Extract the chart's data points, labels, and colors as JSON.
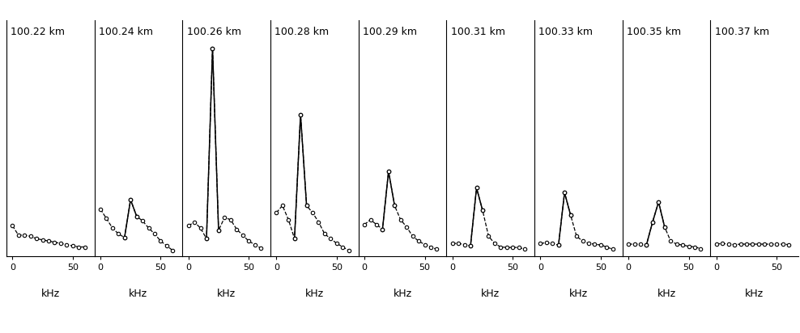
{
  "panels": [
    {
      "label": "100.22 km",
      "xvals": [
        0,
        5,
        10,
        15,
        20,
        25,
        30,
        35,
        40,
        45,
        50,
        55,
        60
      ],
      "yvals": [
        0.13,
        0.09,
        0.09,
        0.085,
        0.075,
        0.07,
        0.065,
        0.06,
        0.055,
        0.05,
        0.045,
        0.04,
        0.04
      ],
      "solid_pairs": []
    },
    {
      "label": "100.24 km",
      "xvals": [
        0,
        5,
        10,
        15,
        20,
        25,
        30,
        35,
        40,
        45,
        50,
        55,
        60
      ],
      "yvals": [
        0.2,
        0.17,
        0.13,
        0.1,
        0.085,
        0.25,
        0.18,
        0.15,
        0.12,
        0.1,
        0.07,
        0.05,
        0.03
      ],
      "solid_pairs": [
        [
          4,
          6
        ]
      ]
    },
    {
      "label": "100.26 km",
      "xvals": [
        0,
        5,
        10,
        15,
        20,
        25,
        30,
        35,
        40,
        45,
        50,
        55,
        60
      ],
      "yvals": [
        0.13,
        0.14,
        0.12,
        0.08,
        0.9,
        0.12,
        0.17,
        0.16,
        0.12,
        0.09,
        0.07,
        0.05,
        0.04
      ],
      "solid_pairs": [
        [
          3,
          5
        ]
      ]
    },
    {
      "label": "100.28 km",
      "xvals": [
        0,
        5,
        10,
        15,
        20,
        25,
        30,
        35,
        40,
        45,
        50,
        55,
        60
      ],
      "yvals": [
        0.19,
        0.22,
        0.16,
        0.08,
        0.62,
        0.22,
        0.19,
        0.15,
        0.1,
        0.08,
        0.06,
        0.04,
        0.03
      ],
      "solid_pairs": [
        [
          3,
          5
        ]
      ]
    },
    {
      "label": "100.29 km",
      "xvals": [
        0,
        5,
        10,
        15,
        20,
        25,
        30,
        35,
        40,
        45,
        50,
        55,
        60
      ],
      "yvals": [
        0.14,
        0.16,
        0.14,
        0.12,
        0.38,
        0.22,
        0.16,
        0.13,
        0.09,
        0.07,
        0.05,
        0.04,
        0.03
      ],
      "solid_pairs": [
        [
          3,
          5
        ]
      ]
    },
    {
      "label": "100.31 km",
      "xvals": [
        0,
        5,
        10,
        15,
        20,
        25,
        30,
        35,
        40,
        45,
        50,
        55,
        60
      ],
      "yvals": [
        0.06,
        0.06,
        0.05,
        0.05,
        0.3,
        0.2,
        0.09,
        0.06,
        0.04,
        0.04,
        0.04,
        0.04,
        0.03
      ],
      "solid_pairs": [
        [
          3,
          5
        ]
      ]
    },
    {
      "label": "100.33 km",
      "xvals": [
        0,
        5,
        10,
        15,
        20,
        25,
        30,
        35,
        40,
        45,
        50,
        55,
        60
      ],
      "yvals": [
        0.06,
        0.06,
        0.06,
        0.05,
        0.28,
        0.18,
        0.09,
        0.07,
        0.06,
        0.055,
        0.05,
        0.04,
        0.03
      ],
      "solid_pairs": [
        [
          3,
          5
        ]
      ]
    },
    {
      "label": "100.35 km",
      "xvals": [
        0,
        5,
        10,
        15,
        20,
        25,
        30,
        35,
        40,
        45,
        50,
        55,
        60
      ],
      "yvals": [
        0.055,
        0.055,
        0.055,
        0.055,
        0.155,
        0.24,
        0.13,
        0.07,
        0.055,
        0.05,
        0.045,
        0.04,
        0.035
      ],
      "solid_pairs": [
        [
          3,
          6
        ]
      ]
    },
    {
      "label": "100.37 km",
      "xvals": [
        0,
        5,
        10,
        15,
        20,
        25,
        30,
        35,
        40,
        45,
        50,
        55,
        60
      ],
      "yvals": [
        0.055,
        0.055,
        0.055,
        0.055,
        0.055,
        0.055,
        0.055,
        0.055,
        0.055,
        0.055,
        0.055,
        0.055,
        0.055
      ],
      "solid_pairs": []
    }
  ],
  "xlim": [
    -5,
    68
  ],
  "xticks": [
    0,
    50
  ],
  "ylim": [
    0,
    1.0
  ],
  "background_color": "#ffffff",
  "line_color": "#000000",
  "markersize": 3.2,
  "linewidth_dashed": 0.9,
  "linewidth_solid": 1.1,
  "label_fontsize": 9,
  "tick_fontsize": 8,
  "khz_fontsize": 9
}
